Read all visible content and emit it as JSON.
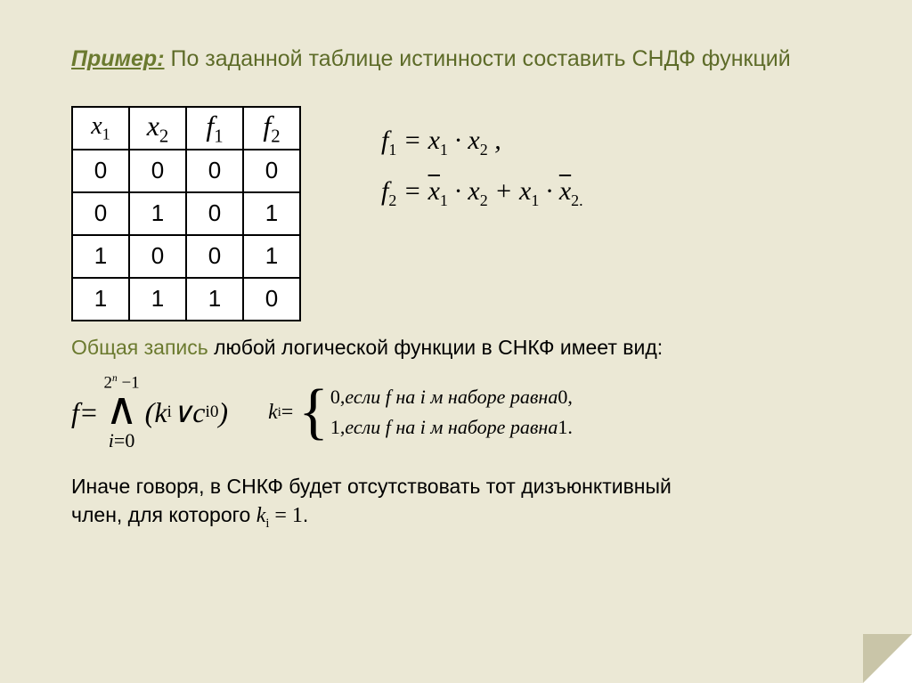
{
  "title": {
    "lead": "Пример:",
    "rest": " По заданной таблице истинности составить СНДФ функций"
  },
  "truth_table": {
    "columns": [
      {
        "var": "x",
        "sub": "1",
        "big": false
      },
      {
        "var": "x",
        "sub": "2",
        "big": true
      },
      {
        "var": "f",
        "sub": "1",
        "big": true
      },
      {
        "var": "f",
        "sub": "2",
        "big": true
      }
    ],
    "rows": [
      [
        "0",
        "0",
        "0",
        "0"
      ],
      [
        "0",
        "1",
        "0",
        "1"
      ],
      [
        "1",
        "0",
        "0",
        "1"
      ],
      [
        "1",
        "1",
        "1",
        "0"
      ]
    ],
    "border_color": "#000000",
    "cell_bg": "#ffffff"
  },
  "formulas": {
    "f1": {
      "lhs_var": "f",
      "lhs_sub": "1",
      "eq": " = ",
      "t1v": "x",
      "t1s": "1",
      "dot": " · ",
      "t2v": "x",
      "t2s": "2",
      "comma": " ,"
    },
    "f2": {
      "lhs_var": "f",
      "lhs_sub": "2",
      "eq": " = ",
      "a1v": "x",
      "a1s": "1",
      "dot1": " · ",
      "a2v": "x",
      "a2s": "2",
      "plus": " + ",
      "b1v": "x",
      "b1s": "1",
      "dot2": " · ",
      "b2v": "x",
      "b2s": "2.",
      "period": ""
    }
  },
  "para1": {
    "hl": "Общая запись",
    "rest": " любой логической функции в СНКФ имеет вид:"
  },
  "bigformula": {
    "f": "f",
    "eq": "  =  ",
    "upper_a": "2",
    "upper_exp": "n",
    "upper_tail": " −1",
    "wedge": "∧",
    "lower_i": "i",
    "lower_eq": "=0",
    "open": "(",
    "k": "k",
    "ks": "i",
    "or": " ∨ ",
    "c": "c",
    "cs": "i",
    "csup": "0",
    "close": ")"
  },
  "ki": {
    "k": "k",
    "ks": "i",
    "eq": " =",
    "case0_lead": "0,",
    "case0_txt": "если  f  на i м наборе  равна",
    "case0_end": "0,",
    "case1_lead": "1,",
    "case1_txt": "если  f  на i м наборе  равна",
    "case1_end": "1."
  },
  "footer": {
    "line1": "Иначе говоря, в СНКФ будет отсутствовать тот дизъюнктивный",
    "line2a": "член, для которого  ",
    "k": "k",
    "ks": "i",
    "eq": " = 1",
    "period": "."
  },
  "colors": {
    "background": "#ebe8d5",
    "accent": "#6b7a2f"
  }
}
